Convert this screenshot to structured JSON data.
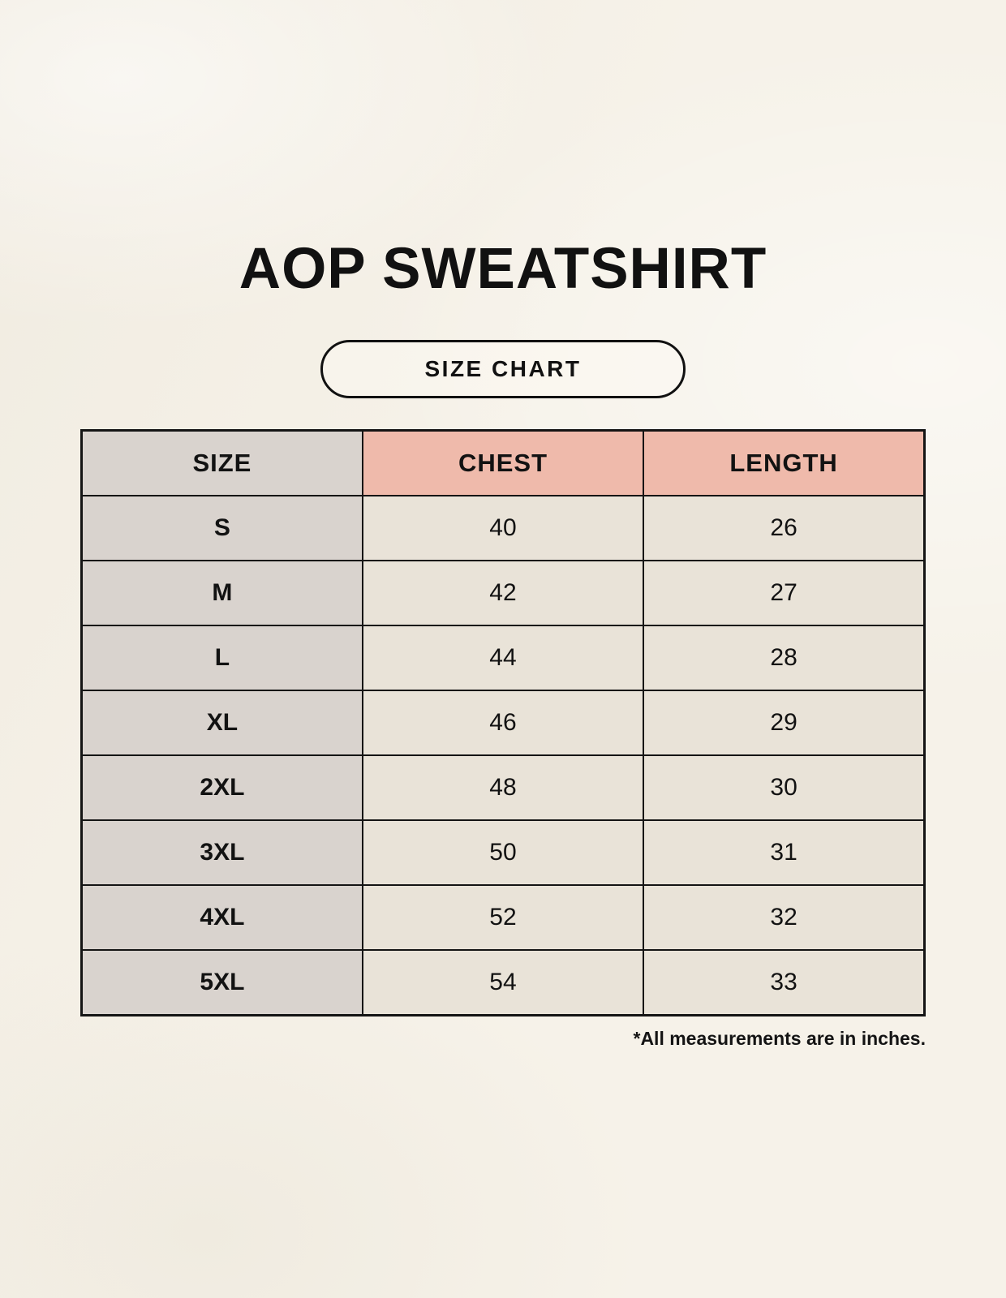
{
  "page": {
    "title": "AOP SWEATSHIRT",
    "badge_label": "SIZE CHART",
    "footnote": "*All measurements are in inches."
  },
  "table": {
    "columns": [
      "SIZE",
      "CHEST",
      "LENGTH"
    ],
    "rows": [
      [
        "S",
        "40",
        "26"
      ],
      [
        "M",
        "42",
        "27"
      ],
      [
        "L",
        "44",
        "28"
      ],
      [
        "XL",
        "46",
        "29"
      ],
      [
        "2XL",
        "48",
        "30"
      ],
      [
        "3XL",
        "50",
        "31"
      ],
      [
        "4XL",
        "52",
        "32"
      ],
      [
        "5XL",
        "54",
        "33"
      ]
    ],
    "units_note": "*All measurements are in inches."
  },
  "chart_data": {
    "type": "table",
    "title": "AOP SWEATSHIRT",
    "columns": [
      "SIZE",
      "CHEST",
      "LENGTH"
    ],
    "rows": [
      {
        "size": "S",
        "chest": 40,
        "length": 26
      },
      {
        "size": "M",
        "chest": 42,
        "length": 27
      },
      {
        "size": "L",
        "chest": 44,
        "length": 28
      },
      {
        "size": "XL",
        "chest": 46,
        "length": 29
      },
      {
        "size": "2XL",
        "chest": 48,
        "length": 30
      },
      {
        "size": "3XL",
        "chest": 50,
        "length": 31
      },
      {
        "size": "4XL",
        "chest": 52,
        "length": 32
      },
      {
        "size": "5XL",
        "chest": 54,
        "length": 33
      }
    ],
    "units": "inches"
  },
  "colors": {
    "background": "#f6f2e9",
    "size_column_bg": "#d9d3ce",
    "header_accent_bg": "#efbaab",
    "cell_bg": "#e9e3d8",
    "border": "#141414",
    "text": "#111111"
  }
}
